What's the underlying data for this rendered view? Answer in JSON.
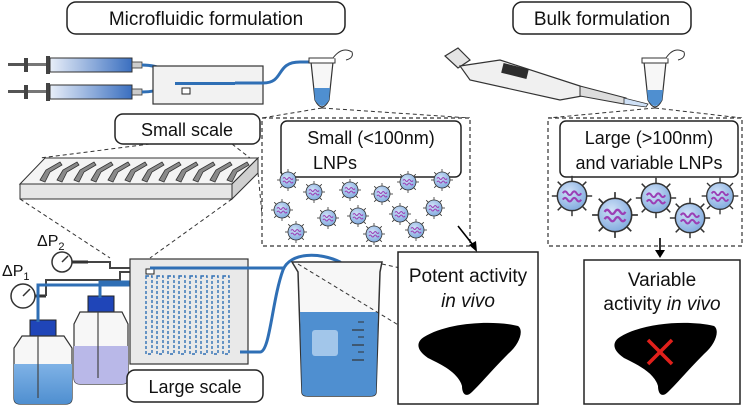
{
  "titles": {
    "microfluidic": "Microfluidic formulation",
    "bulk": "Bulk formulation"
  },
  "labels": {
    "small_scale": "Small scale",
    "large_scale": "Large scale",
    "dp1": "ΔP",
    "dp1_sub": "1",
    "dp2": "ΔP",
    "dp2_sub": "2"
  },
  "lnp_small": {
    "line1": "Small (<100nm)",
    "line2": "LNPs"
  },
  "lnp_large": {
    "line1": "Large (>100nm)",
    "line2": "and variable LNPs"
  },
  "outcome_potent": {
    "line1": "Potent activity",
    "line2": "in vivo"
  },
  "outcome_variable": {
    "line1": "Variable",
    "line2_a": "activity ",
    "line2_b": "in vivo"
  },
  "colors": {
    "tube_blue": "#2f6fb5",
    "liquid_blue": "#6fa8dc",
    "lnp_fill": "#9fc3ea",
    "lnp_wave": "#9b3fb5",
    "cross_red": "#e0201b",
    "liver": "#000000"
  }
}
